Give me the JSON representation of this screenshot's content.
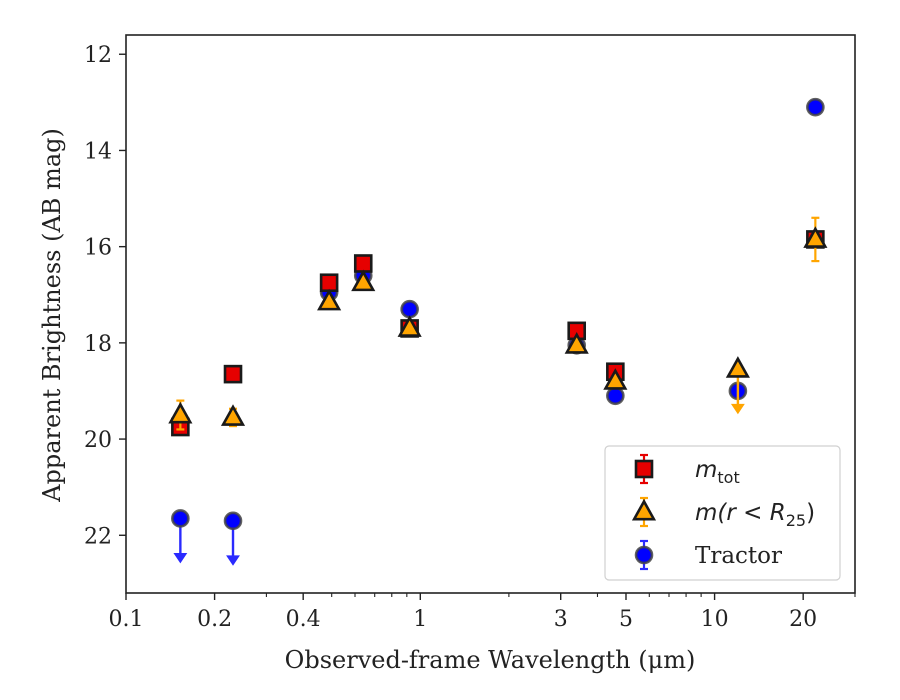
{
  "chart_data": {
    "type": "scatter",
    "xscale": "log",
    "y_inverted": true,
    "xlabel": "Observed-frame Wavelength (μm)",
    "ylabel": "Apparent Brightness (AB mag)",
    "xlim": [
      0.1,
      30
    ],
    "ylim": [
      23.2,
      11.6
    ],
    "grid": false,
    "legend_placement": "lower-right",
    "x_major_ticks": [
      {
        "value": 0.1,
        "label": "0.1"
      },
      {
        "value": 0.2,
        "label": "0.2"
      },
      {
        "value": 0.4,
        "label": "0.4"
      },
      {
        "value": 1,
        "label": "1"
      },
      {
        "value": 3,
        "label": "3"
      },
      {
        "value": 5,
        "label": "5"
      },
      {
        "value": 10,
        "label": "10"
      },
      {
        "value": 20,
        "label": "20"
      }
    ],
    "x_minor_ticks": [
      0.3,
      0.5,
      0.6,
      0.7,
      0.8,
      0.9,
      2,
      4,
      6,
      7,
      8,
      9,
      30
    ],
    "y_ticks": [
      {
        "value": 12,
        "label": "12"
      },
      {
        "value": 14,
        "label": "14"
      },
      {
        "value": 16,
        "label": "16"
      },
      {
        "value": 18,
        "label": "18"
      },
      {
        "value": 20,
        "label": "20"
      },
      {
        "value": 22,
        "label": "22"
      }
    ],
    "series": [
      {
        "name": "m_tot",
        "marker": "square",
        "color": "#e60000",
        "points": [
          {
            "x": 0.153,
            "y": 19.75,
            "err": 0.08
          },
          {
            "x": 0.231,
            "y": 18.65,
            "err": 0.05
          },
          {
            "x": 0.49,
            "y": 16.75,
            "err": 0.05
          },
          {
            "x": 0.64,
            "y": 16.35,
            "err": 0.05
          },
          {
            "x": 0.92,
            "y": 17.7,
            "err": 0.05
          },
          {
            "x": 3.4,
            "y": 17.75,
            "err": 0.05
          },
          {
            "x": 4.6,
            "y": 18.6,
            "err": 0.05
          },
          {
            "x": 22,
            "y": 15.85,
            "err": 0.1
          }
        ]
      },
      {
        "name": "m(r < R25)",
        "marker": "triangle",
        "color": "#ffa500",
        "points": [
          {
            "x": 0.153,
            "y": 19.5,
            "err": 0.3
          },
          {
            "x": 0.231,
            "y": 19.55,
            "err": 0.18
          },
          {
            "x": 0.49,
            "y": 17.15,
            "err": 0.05
          },
          {
            "x": 0.64,
            "y": 16.75,
            "err": 0.05
          },
          {
            "x": 0.92,
            "y": 17.7,
            "err": 0.05
          },
          {
            "x": 3.4,
            "y": 18.05,
            "err": 0.05
          },
          {
            "x": 4.6,
            "y": 18.8,
            "err": 0.05
          },
          {
            "x": 12,
            "y": 18.55,
            "upper_limit": true
          },
          {
            "x": 22,
            "y": 15.85,
            "err": 0.45
          }
        ]
      },
      {
        "name": "Tractor",
        "marker": "circle",
        "color": "#0000ff",
        "points": [
          {
            "x": 0.153,
            "y": 21.65,
            "upper_limit": true
          },
          {
            "x": 0.231,
            "y": 21.7,
            "upper_limit": true
          },
          {
            "x": 0.49,
            "y": 16.95,
            "err": 0.05
          },
          {
            "x": 0.64,
            "y": 16.6,
            "err": 0.05
          },
          {
            "x": 0.92,
            "y": 17.3,
            "err": 0.05
          },
          {
            "x": 3.4,
            "y": 18.05,
            "err": 0.05
          },
          {
            "x": 4.6,
            "y": 19.1,
            "err": 0.05
          },
          {
            "x": 12,
            "y": 19.0,
            "err": 0.05
          },
          {
            "x": 22,
            "y": 13.1,
            "err": 0.05
          }
        ]
      }
    ],
    "legend": {
      "entries": [
        {
          "series_index": 0,
          "label_main": "m",
          "label_sub": "tot",
          "label_rest": ""
        },
        {
          "series_index": 1,
          "label_main": "m(r < R",
          "label_sub": "25",
          "label_rest": ")"
        },
        {
          "series_index": 2,
          "label_main": "Tractor",
          "label_sub": "",
          "label_rest": ""
        }
      ]
    }
  }
}
